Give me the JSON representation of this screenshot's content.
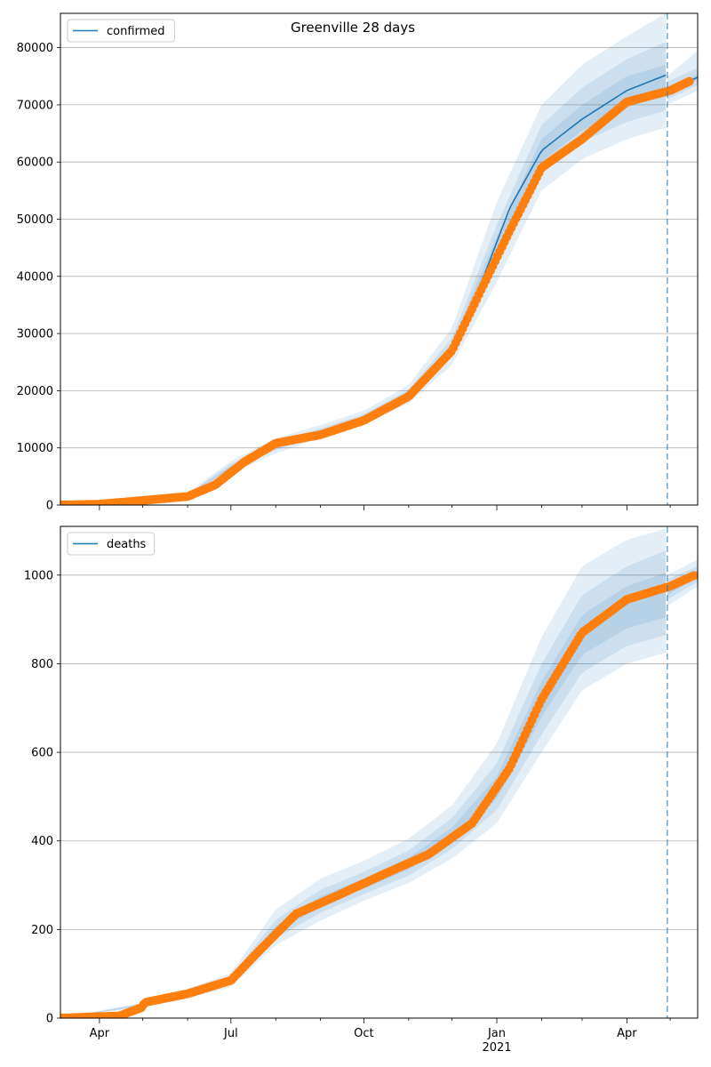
{
  "title": "Greenville 28 days",
  "colors": {
    "model": "#1f77b4",
    "observed": "#ff7f0e",
    "band": "#1f77b4",
    "grid": "#b0b0b0",
    "forecast_line": "#1f77b4"
  },
  "x_axis": {
    "ticks": [
      {
        "date": "2020-04-01",
        "label": "Apr",
        "sub": ""
      },
      {
        "date": "2020-07-01",
        "label": "Jul",
        "sub": ""
      },
      {
        "date": "2020-10-01",
        "label": "Oct",
        "sub": ""
      },
      {
        "date": "2021-01-01",
        "label": "Jan",
        "sub": "2021"
      },
      {
        "date": "2021-04-01",
        "label": "Apr",
        "sub": ""
      }
    ],
    "range": [
      "2020-03-05",
      "2021-05-20"
    ],
    "forecast_date": "2021-04-29"
  },
  "chart_data": [
    {
      "type": "line",
      "series": [
        {
          "name": "confirmed",
          "role": "model"
        },
        {
          "role": "observed",
          "style": "scatter"
        }
      ],
      "legend": "top-left",
      "grid": "y",
      "ylim": [
        0,
        86000
      ],
      "yticks": [
        0,
        10000,
        20000,
        30000,
        40000,
        50000,
        60000,
        70000,
        80000
      ],
      "model_points": [
        [
          "2020-03-05",
          0
        ],
        [
          "2020-04-01",
          150
        ],
        [
          "2020-05-01",
          700
        ],
        [
          "2020-06-01",
          1800
        ],
        [
          "2020-06-20",
          4000
        ],
        [
          "2020-07-10",
          7500
        ],
        [
          "2020-08-01",
          10300
        ],
        [
          "2020-09-01",
          12800
        ],
        [
          "2020-10-01",
          15300
        ],
        [
          "2020-11-01",
          19300
        ],
        [
          "2020-12-01",
          27500
        ],
        [
          "2020-12-20",
          38000
        ],
        [
          "2021-01-10",
          52000
        ],
        [
          "2021-02-01",
          62000
        ],
        [
          "2021-03-01",
          67500
        ],
        [
          "2021-04-01",
          72500
        ],
        [
          "2021-04-28",
          75200
        ]
      ],
      "model_points_post": [
        [
          "2021-04-29",
          72500
        ],
        [
          "2021-05-20",
          74800
        ]
      ],
      "band_points": [
        [
          "2020-03-05",
          0,
          0,
          0,
          0,
          0,
          0
        ],
        [
          "2020-06-01",
          1500,
          1650,
          1750,
          1850,
          1950,
          2100
        ],
        [
          "2020-07-01",
          5500,
          6000,
          6400,
          6800,
          7200,
          7700
        ],
        [
          "2020-08-01",
          9000,
          9600,
          10000,
          10600,
          11000,
          11700
        ],
        [
          "2020-09-01",
          11800,
          12300,
          12700,
          13000,
          13400,
          14000
        ],
        [
          "2020-10-01",
          14300,
          14800,
          15100,
          15500,
          15900,
          16500
        ],
        [
          "2020-11-01",
          17800,
          18600,
          19000,
          19600,
          20200,
          21000
        ],
        [
          "2020-12-01",
          24500,
          26000,
          26800,
          28200,
          29200,
          31000
        ],
        [
          "2021-01-01",
          39000,
          42000,
          44000,
          47000,
          49000,
          53000
        ],
        [
          "2021-02-01",
          55000,
          58000,
          60000,
          64000,
          66500,
          70000
        ],
        [
          "2021-03-01",
          60500,
          63500,
          65500,
          70000,
          73000,
          77000
        ],
        [
          "2021-04-01",
          64000,
          67000,
          69500,
          75000,
          78000,
          82000
        ],
        [
          "2021-04-28",
          66000,
          69000,
          72000,
          77000,
          81000,
          86000
        ]
      ],
      "band_points_post": [
        [
          "2021-04-29",
          70000,
          71000,
          72000,
          73000,
          74000,
          75000
        ],
        [
          "2021-05-20",
          72500,
          73500,
          74300,
          75300,
          76500,
          79500
        ]
      ],
      "observed_points": [
        [
          "2020-03-05",
          0
        ],
        [
          "2020-04-01",
          150
        ],
        [
          "2020-05-01",
          800
        ],
        [
          "2020-06-01",
          1500
        ],
        [
          "2020-06-20",
          3500
        ],
        [
          "2020-07-10",
          7500
        ],
        [
          "2020-08-01",
          10800
        ],
        [
          "2020-09-01",
          12300
        ],
        [
          "2020-10-01",
          14800
        ],
        [
          "2020-11-01",
          19000
        ],
        [
          "2020-12-01",
          27000
        ],
        [
          "2020-12-20",
          37000
        ],
        [
          "2021-01-10",
          48000
        ],
        [
          "2021-02-01",
          59000
        ],
        [
          "2021-03-01",
          64000
        ],
        [
          "2021-04-01",
          70500
        ],
        [
          "2021-05-01",
          72500
        ],
        [
          "2021-05-15",
          74200
        ]
      ]
    },
    {
      "type": "line",
      "series": [
        {
          "name": "deaths",
          "role": "model"
        },
        {
          "role": "observed",
          "style": "scatter"
        }
      ],
      "legend": "top-left",
      "grid": "y",
      "ylim": [
        0,
        1110
      ],
      "yticks": [
        0,
        200,
        400,
        600,
        800,
        1000
      ],
      "model_points": [
        [
          "2020-03-05",
          0
        ],
        [
          "2020-04-15",
          5
        ],
        [
          "2020-05-01",
          30
        ],
        [
          "2020-06-01",
          55
        ],
        [
          "2020-07-01",
          85
        ],
        [
          "2020-07-20",
          160
        ],
        [
          "2020-08-15",
          240
        ],
        [
          "2020-09-15",
          285
        ],
        [
          "2020-10-15",
          320
        ],
        [
          "2020-11-15",
          370
        ],
        [
          "2020-12-15",
          440
        ],
        [
          "2021-01-10",
          560
        ],
        [
          "2021-02-01",
          730
        ],
        [
          "2021-03-01",
          870
        ],
        [
          "2021-04-01",
          940
        ],
        [
          "2021-04-28",
          970
        ]
      ],
      "model_points_post": [
        [
          "2021-04-29",
          965
        ],
        [
          "2021-05-20",
          1005
        ]
      ],
      "band_points": [
        [
          "2020-03-05",
          0,
          0,
          0,
          0,
          0,
          0
        ],
        [
          "2020-05-01",
          25,
          27,
          29,
          31,
          33,
          35
        ],
        [
          "2020-06-01",
          45,
          49,
          52,
          58,
          62,
          66
        ],
        [
          "2020-07-01",
          70,
          77,
          82,
          88,
          94,
          102
        ],
        [
          "2020-08-01",
          165,
          180,
          192,
          208,
          222,
          245
        ],
        [
          "2020-09-01",
          220,
          238,
          252,
          275,
          290,
          315
        ],
        [
          "2020-10-01",
          265,
          280,
          292,
          315,
          330,
          355
        ],
        [
          "2020-11-01",
          305,
          322,
          336,
          362,
          378,
          405
        ],
        [
          "2020-12-01",
          360,
          382,
          398,
          430,
          452,
          480
        ],
        [
          "2021-01-01",
          440,
          470,
          495,
          545,
          575,
          620
        ],
        [
          "2021-02-01",
          600,
          640,
          680,
          760,
          800,
          860
        ],
        [
          "2021-03-01",
          740,
          780,
          820,
          910,
          955,
          1020
        ],
        [
          "2021-04-01",
          800,
          840,
          880,
          975,
          1020,
          1080
        ],
        [
          "2021-04-28",
          825,
          865,
          905,
          1005,
          1055,
          1105
        ]
      ],
      "band_points_post": [
        [
          "2021-04-29",
          930,
          945,
          955,
          978,
          990,
          1000
        ],
        [
          "2021-05-20",
          975,
          985,
          995,
          1010,
          1020,
          1035
        ]
      ],
      "observed_points": [
        [
          "2020-03-05",
          0
        ],
        [
          "2020-04-15",
          5
        ],
        [
          "2020-05-01",
          25
        ],
        [
          "2020-05-02",
          35
        ],
        [
          "2020-06-01",
          55
        ],
        [
          "2020-07-01",
          85
        ],
        [
          "2020-07-20",
          150
        ],
        [
          "2020-08-15",
          235
        ],
        [
          "2020-09-15",
          280
        ],
        [
          "2020-10-15",
          325
        ],
        [
          "2020-11-15",
          370
        ],
        [
          "2020-12-15",
          440
        ],
        [
          "2021-01-10",
          565
        ],
        [
          "2021-02-01",
          720
        ],
        [
          "2021-03-01",
          870
        ],
        [
          "2021-04-01",
          945
        ],
        [
          "2021-05-01",
          975
        ],
        [
          "2021-05-18",
          1000
        ]
      ]
    }
  ]
}
